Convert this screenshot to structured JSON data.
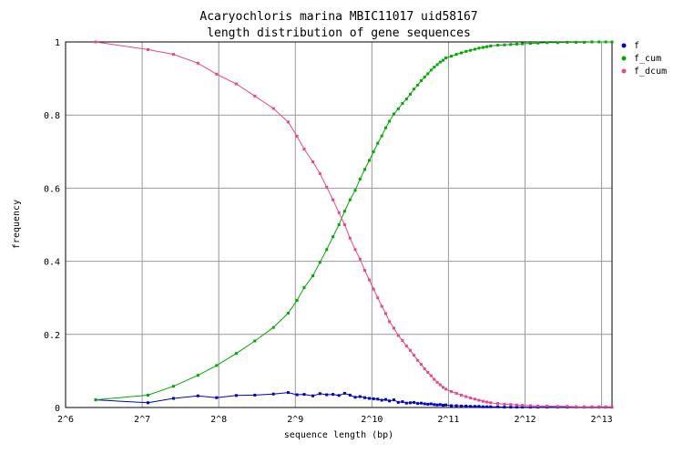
{
  "chart_data": {
    "type": "line",
    "title": "Acaryochloris marina MBIC11017 uid58167",
    "subtitle": "length distribution of gene sequences",
    "xlabel": "sequence length (bp)",
    "ylabel": "frequency",
    "x_scale": "log2",
    "xlim": [
      64,
      9000
    ],
    "ylim": [
      0,
      1
    ],
    "x_ticks": [
      {
        "value": 64,
        "label": "2^6"
      },
      {
        "value": 128,
        "label": "2^7"
      },
      {
        "value": 256,
        "label": "2^8"
      },
      {
        "value": 512,
        "label": "2^9"
      },
      {
        "value": 1024,
        "label": "2^10"
      },
      {
        "value": 2048,
        "label": "2^11"
      },
      {
        "value": 4096,
        "label": "2^12"
      },
      {
        "value": 8192,
        "label": "2^13"
      }
    ],
    "y_ticks": [
      {
        "value": 0,
        "label": "0"
      },
      {
        "value": 0.2,
        "label": "0.2"
      },
      {
        "value": 0.4,
        "label": "0.4"
      },
      {
        "value": 0.6,
        "label": "0.6"
      },
      {
        "value": 0.8,
        "label": "0.8"
      },
      {
        "value": 1,
        "label": "1"
      }
    ],
    "grid": true,
    "legend_position": "right",
    "series": [
      {
        "name": "f",
        "color": "#0000cc",
        "x": [
          84,
          135,
          170,
          212,
          251,
          300,
          355,
          420,
          480,
          520,
          555,
          600,
          640,
          680,
          720,
          760,
          800,
          840,
          880,
          920,
          960,
          1000,
          1040,
          1080,
          1120,
          1160,
          1200,
          1250,
          1300,
          1350,
          1400,
          1450,
          1500,
          1550,
          1600,
          1650,
          1700,
          1750,
          1800,
          1850,
          1900,
          1950,
          2000,
          2100,
          2200,
          2300,
          2400,
          2500,
          2600,
          2700,
          2800,
          2900,
          3000,
          3200,
          3400,
          3600,
          3800,
          4000,
          4300,
          4600,
          5000,
          5500,
          6000,
          6500,
          7000,
          7500,
          8000,
          8500,
          9000
        ],
        "y": [
          0.021,
          0.013,
          0.025,
          0.032,
          0.027,
          0.033,
          0.034,
          0.037,
          0.041,
          0.035,
          0.036,
          0.032,
          0.038,
          0.035,
          0.036,
          0.033,
          0.039,
          0.034,
          0.028,
          0.03,
          0.027,
          0.025,
          0.024,
          0.023,
          0.02,
          0.022,
          0.018,
          0.021,
          0.014,
          0.016,
          0.012,
          0.013,
          0.014,
          0.011,
          0.012,
          0.01,
          0.009,
          0.01,
          0.008,
          0.007,
          0.008,
          0.006,
          0.007,
          0.005,
          0.005,
          0.004,
          0.004,
          0.003,
          0.003,
          0.003,
          0.002,
          0.002,
          0.002,
          0.002,
          0.001,
          0.001,
          0.001,
          0.001,
          0.001,
          0.001,
          0.001,
          0.001,
          0.001,
          0.001,
          0.001,
          0.001,
          0.001,
          0.001,
          0.001
        ]
      },
      {
        "name": "f_cum",
        "color": "#00aa00",
        "x": [
          84,
          135,
          170,
          212,
          251,
          300,
          355,
          420,
          480,
          520,
          555,
          600,
          640,
          680,
          720,
          760,
          800,
          840,
          880,
          920,
          960,
          1000,
          1040,
          1080,
          1120,
          1160,
          1200,
          1250,
          1300,
          1350,
          1400,
          1450,
          1500,
          1550,
          1600,
          1650,
          1700,
          1750,
          1800,
          1850,
          1900,
          1950,
          2000,
          2100,
          2200,
          2300,
          2400,
          2500,
          2600,
          2700,
          2800,
          2900,
          3000,
          3200,
          3400,
          3600,
          3800,
          4000,
          4300,
          4600,
          5000,
          5500,
          6000,
          6500,
          7000,
          7500,
          8000,
          8500,
          9000
        ],
        "y": [
          0.021,
          0.034,
          0.058,
          0.088,
          0.115,
          0.148,
          0.182,
          0.219,
          0.258,
          0.293,
          0.328,
          0.36,
          0.397,
          0.432,
          0.467,
          0.5,
          0.537,
          0.568,
          0.594,
          0.625,
          0.651,
          0.676,
          0.7,
          0.723,
          0.743,
          0.765,
          0.783,
          0.803,
          0.817,
          0.832,
          0.844,
          0.857,
          0.871,
          0.882,
          0.894,
          0.904,
          0.913,
          0.923,
          0.931,
          0.938,
          0.945,
          0.95,
          0.956,
          0.961,
          0.966,
          0.97,
          0.974,
          0.977,
          0.98,
          0.983,
          0.985,
          0.987,
          0.989,
          0.991,
          0.992,
          0.993,
          0.994,
          0.995,
          0.996,
          0.997,
          0.998,
          0.998,
          0.999,
          0.999,
          0.999,
          1.0,
          1.0,
          1.0,
          1.0
        ]
      },
      {
        "name": "f_dcum",
        "color": "#ee4488",
        "x": [
          84,
          135,
          170,
          212,
          251,
          300,
          355,
          420,
          480,
          520,
          555,
          600,
          640,
          680,
          720,
          760,
          800,
          840,
          880,
          920,
          960,
          1000,
          1040,
          1080,
          1120,
          1160,
          1200,
          1250,
          1300,
          1350,
          1400,
          1450,
          1500,
          1550,
          1600,
          1650,
          1700,
          1750,
          1800,
          1850,
          1900,
          1950,
          2000,
          2100,
          2200,
          2300,
          2400,
          2500,
          2600,
          2700,
          2800,
          2900,
          3000,
          3200,
          3400,
          3600,
          3800,
          4000,
          4300,
          4600,
          5000,
          5500,
          6000,
          6500,
          7000,
          7500,
          8000,
          8500,
          9000
        ],
        "y": [
          1.0,
          0.979,
          0.966,
          0.942,
          0.912,
          0.885,
          0.852,
          0.818,
          0.781,
          0.742,
          0.707,
          0.672,
          0.64,
          0.603,
          0.568,
          0.533,
          0.5,
          0.463,
          0.432,
          0.406,
          0.375,
          0.349,
          0.324,
          0.3,
          0.277,
          0.257,
          0.235,
          0.217,
          0.197,
          0.183,
          0.168,
          0.156,
          0.143,
          0.129,
          0.118,
          0.106,
          0.096,
          0.087,
          0.077,
          0.069,
          0.062,
          0.055,
          0.05,
          0.044,
          0.039,
          0.034,
          0.03,
          0.026,
          0.023,
          0.02,
          0.017,
          0.015,
          0.013,
          0.011,
          0.009,
          0.008,
          0.007,
          0.006,
          0.005,
          0.004,
          0.004,
          0.003,
          0.003,
          0.002,
          0.002,
          0.002,
          0.002,
          0.002,
          0.002
        ]
      }
    ]
  }
}
